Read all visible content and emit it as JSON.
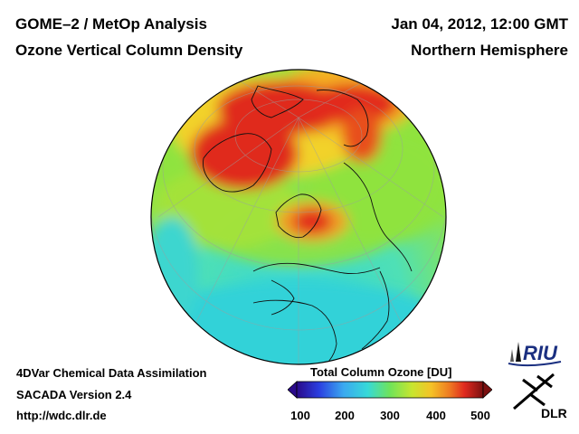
{
  "header": {
    "title_line1": "GOME–2 / MetOp Analysis",
    "title_line2": "Ozone Vertical Column Density",
    "date": "Jan 04, 2012, 12:00 GMT",
    "region": "Northern Hemisphere"
  },
  "footer": {
    "line1": "4DVar Chemical Data Assimilation",
    "line2": "SACADA Version 2.4",
    "line3": "http://wdc.dlr.de"
  },
  "colorbar": {
    "title": "Total Column Ozone [DU]",
    "ticks": [
      "100",
      "200",
      "300",
      "400",
      "500"
    ],
    "range": [
      100,
      500
    ]
  },
  "logos": {
    "riu": "RIU",
    "dlr": "DLR"
  },
  "colors": {
    "high_ozone": "#d81a1e",
    "mid_ozone": "#7fe04a",
    "low_ozone": "#3fd7d0"
  }
}
